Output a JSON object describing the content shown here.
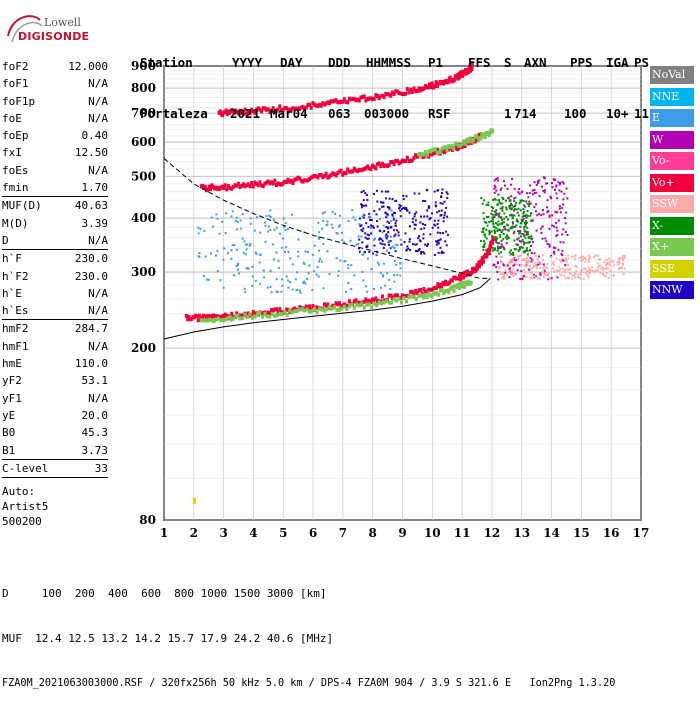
{
  "logo": {
    "top": "Lowell",
    "bottom": "DIGISONDE"
  },
  "header": {
    "row1": [
      "Station",
      "YYYY",
      "DAY",
      "DDD",
      "HHMMSS",
      "P1",
      "FFS",
      "S",
      "AXN",
      "PPS",
      "IGA",
      "PS"
    ],
    "row2": [
      "Fortaleza",
      "2021",
      "Mar04",
      "063",
      "003000",
      "RSF",
      "",
      "1",
      "714",
      "100",
      "10+",
      "11"
    ]
  },
  "params": [
    {
      "name": "foF2",
      "value": "12.000",
      "sep_after": false
    },
    {
      "name": "foF1",
      "value": "N/A",
      "sep_after": false
    },
    {
      "name": "foF1p",
      "value": "N/A",
      "sep_after": false
    },
    {
      "name": "foE",
      "value": "N/A",
      "sep_after": false
    },
    {
      "name": "foEp",
      "value": "0.40",
      "sep_after": false
    },
    {
      "name": "fxI",
      "value": "12.50",
      "sep_after": false
    },
    {
      "name": "foEs",
      "value": "N/A",
      "sep_after": false
    },
    {
      "name": "fmin",
      "value": "1.70",
      "sep_after": true
    },
    {
      "name": "MUF(D)",
      "value": "40.63",
      "sep_after": false
    },
    {
      "name": "M(D)",
      "value": "3.39",
      "sep_after": false
    },
    {
      "name": "D",
      "value": "N/A",
      "sep_after": true
    },
    {
      "name": "h`F",
      "value": "230.0",
      "sep_after": false
    },
    {
      "name": "h`F2",
      "value": "230.0",
      "sep_after": false
    },
    {
      "name": "h`E",
      "value": "N/A",
      "sep_after": false
    },
    {
      "name": "h`Es",
      "value": "N/A",
      "sep_after": true
    },
    {
      "name": "hmF2",
      "value": "284.7",
      "sep_after": false
    },
    {
      "name": "hmF1",
      "value": "N/A",
      "sep_after": false
    },
    {
      "name": "hmE",
      "value": "110.0",
      "sep_after": false
    },
    {
      "name": "yF2",
      "value": "53.1",
      "sep_after": false
    },
    {
      "name": "yF1",
      "value": "N/A",
      "sep_after": false
    },
    {
      "name": "yE",
      "value": "20.0",
      "sep_after": false
    },
    {
      "name": "B0",
      "value": "45.3",
      "sep_after": false
    },
    {
      "name": "B1",
      "value": "3.73",
      "sep_after": true
    },
    {
      "name": "C-level",
      "value": "33",
      "sep_after": true
    }
  ],
  "autoscaling": {
    "line1": "Auto:",
    "line2": "Artist5",
    "line3": "500200"
  },
  "bottom": {
    "d_row": "D     100  200  400  600  800 1000 1500 3000 [km]",
    "muf_row": "MUF  12.4 12.5 13.2 14.2 15.7 17.9 24.2 40.6 [MHz]",
    "info_row": "FZA0M_2021063003000.RSF / 320fx256h 50 kHz 5.0 km / DPS-4 FZA0M 904 / 3.9 S 321.6 E   Ion2Png 1.3.20"
  },
  "legend": [
    {
      "label": "NoVal",
      "color": "#808080",
      "text_color": "#ffffff"
    },
    {
      "label": "NNE",
      "color": "#00b4f0",
      "text_color": "#ffffff"
    },
    {
      "label": "E",
      "color": "#3c9ce8",
      "text_color": "#ffffff"
    },
    {
      "label": "W",
      "color": "#b400b4",
      "text_color": "#ffffff"
    },
    {
      "label": "Vo-",
      "color": "#ff3c96",
      "text_color": "#ffffff"
    },
    {
      "label": "Vo+",
      "color": "#f0003c",
      "text_color": "#ffffff"
    },
    {
      "label": "SSW",
      "color": "#ffaaaa",
      "text_color": "#ffffff"
    },
    {
      "label": "X-",
      "color": "#008c00",
      "text_color": "#ffffff"
    },
    {
      "label": "X+",
      "color": "#78c850",
      "text_color": "#ffffff"
    },
    {
      "label": "SSE",
      "color": "#d2d200",
      "text_color": "#ffffff"
    },
    {
      "label": "NNW",
      "color": "#1e00c8",
      "text_color": "#ffffff"
    }
  ],
  "chart_data": {
    "type": "scatter",
    "title": "",
    "xlabel": "",
    "ylabel": "",
    "xlim": [
      1,
      17
    ],
    "ylim": [
      80,
      900
    ],
    "y_scale": "log",
    "x_ticks": [
      1,
      2,
      3,
      4,
      5,
      6,
      7,
      8,
      9,
      10,
      11,
      12,
      13,
      14,
      15,
      16,
      17
    ],
    "y_ticks": [
      80,
      200,
      300,
      400,
      500,
      600,
      700,
      800,
      900
    ],
    "grid": true,
    "traces": [
      {
        "name": "F2 O-trace 1st hop",
        "color": "#f0003c",
        "points": [
          [
            1.7,
            235
          ],
          [
            2.5,
            235
          ],
          [
            3,
            237
          ],
          [
            4,
            240
          ],
          [
            5,
            244
          ],
          [
            6,
            248
          ],
          [
            7,
            253
          ],
          [
            8,
            258
          ],
          [
            9,
            265
          ],
          [
            10,
            275
          ],
          [
            10.8,
            290
          ],
          [
            11.4,
            305
          ],
          [
            11.8,
            330
          ],
          [
            12,
            360
          ]
        ]
      },
      {
        "name": "F2 X-trace 1st hop",
        "color": "#78c850",
        "points": [
          [
            2.2,
            233
          ],
          [
            3.5,
            236
          ],
          [
            5,
            241
          ],
          [
            6.5,
            246
          ],
          [
            8,
            252
          ],
          [
            9.5,
            262
          ],
          [
            10.5,
            272
          ],
          [
            11.3,
            285
          ]
        ]
      },
      {
        "name": "F2 O-trace 2nd hop",
        "color": "#f0003c",
        "points": [
          [
            2.2,
            470
          ],
          [
            3,
            472
          ],
          [
            4,
            478
          ],
          [
            5,
            485
          ],
          [
            6,
            497
          ],
          [
            7,
            510
          ],
          [
            8,
            527
          ],
          [
            9,
            545
          ],
          [
            10,
            565
          ],
          [
            10.8,
            585
          ],
          [
            11.3,
            605
          ],
          [
            11.6,
            620
          ]
        ]
      },
      {
        "name": "F2 X-trace 2nd hop",
        "color": "#78c850",
        "points": [
          [
            9.5,
            560
          ],
          [
            10.5,
            580
          ],
          [
            11.5,
            615
          ],
          [
            12,
            635
          ]
        ]
      },
      {
        "name": "F2 O-trace 3rd hop",
        "color": "#f0003c",
        "points": [
          [
            2.8,
            700
          ],
          [
            3.5,
            705
          ],
          [
            4.5,
            713
          ],
          [
            5.5,
            723
          ],
          [
            6.5,
            737
          ],
          [
            7.5,
            753
          ],
          [
            8.5,
            773
          ],
          [
            9.5,
            797
          ],
          [
            10.3,
            822
          ],
          [
            10.8,
            850
          ],
          [
            11.1,
            875
          ],
          [
            11.3,
            895
          ]
        ]
      }
    ],
    "profile": {
      "name": "Electron density profile",
      "style": "solid",
      "points": [
        [
          1,
          210
        ],
        [
          2,
          218
        ],
        [
          3,
          224
        ],
        [
          4,
          229
        ],
        [
          5,
          233
        ],
        [
          6,
          237
        ],
        [
          7,
          241
        ],
        [
          8,
          245
        ],
        [
          9,
          250
        ],
        [
          10,
          257
        ],
        [
          11,
          266
        ],
        [
          11.6,
          276
        ],
        [
          11.95,
          290
        ]
      ]
    },
    "extrapolation": {
      "name": "Topside extrapolation",
      "style": "dashed",
      "points": [
        [
          1,
          550
        ],
        [
          2,
          480
        ],
        [
          3,
          440
        ],
        [
          4,
          410
        ],
        [
          5,
          385
        ],
        [
          6,
          365
        ],
        [
          7,
          350
        ],
        [
          8,
          336
        ],
        [
          9,
          322
        ],
        [
          10,
          310
        ],
        [
          11,
          298
        ],
        [
          11.6,
          290
        ],
        [
          11.95,
          290
        ]
      ]
    },
    "spread_clusters": [
      {
        "name": "Spread F",
        "color": "#1e00c8",
        "x": [
          7.5,
          10.5
        ],
        "y": [
          330,
          470
        ]
      },
      {
        "name": "Spread F",
        "color": "#3c9ce8",
        "x": [
          2.1,
          9
        ],
        "y": [
          270,
          420
        ]
      },
      {
        "name": "Spread F",
        "color": "#b400b4",
        "x": [
          12,
          14.5
        ],
        "y": [
          290,
          500
        ]
      },
      {
        "name": "Spread F",
        "color": "#ffaaaa",
        "x": [
          12.2,
          16.5
        ],
        "y": [
          290,
          330
        ]
      },
      {
        "name": "Spread F",
        "color": "#008c00",
        "x": [
          11.6,
          13.3
        ],
        "y": [
          330,
          450
        ]
      }
    ],
    "legend_position": "right"
  }
}
